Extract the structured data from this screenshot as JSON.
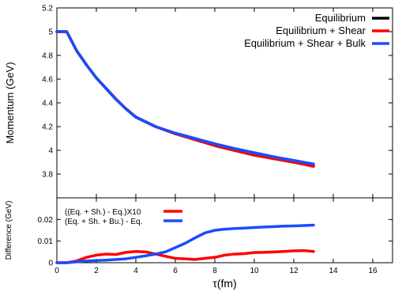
{
  "chart_data": [
    {
      "type": "line",
      "ylabel": "Momentum (GeV)",
      "xlim": [
        0,
        17
      ],
      "ylim": [
        3.6,
        5.2
      ],
      "xticks": [
        0,
        2,
        4,
        6,
        8,
        10,
        12,
        14,
        16
      ],
      "yticks": [
        3.8,
        4,
        4.2,
        4.4,
        4.6,
        4.8,
        5,
        5.2
      ],
      "legend_position": "top-right",
      "series": [
        {
          "name": "Equilibrium",
          "color": "#000000",
          "x": [
            0,
            0.5,
            1,
            1.5,
            2,
            2.5,
            3,
            3.5,
            4,
            5,
            6,
            7,
            8,
            9,
            10,
            11,
            12,
            13
          ],
          "y": [
            5.0,
            5.0,
            4.84,
            4.72,
            4.61,
            4.52,
            4.43,
            4.35,
            4.28,
            4.2,
            4.14,
            4.09,
            4.04,
            4.0,
            3.96,
            3.93,
            3.9,
            3.87
          ]
        },
        {
          "name": "Equilibrium + Shear",
          "color": "#ff0000",
          "x": [
            0,
            0.5,
            1,
            1.5,
            2,
            2.5,
            3,
            3.5,
            4,
            5,
            6,
            7,
            8,
            9,
            10,
            11,
            12,
            13
          ],
          "y": [
            5.0,
            5.0,
            4.84,
            4.72,
            4.61,
            4.52,
            4.43,
            4.35,
            4.28,
            4.2,
            4.14,
            4.09,
            4.04,
            4.0,
            3.96,
            3.93,
            3.9,
            3.865
          ]
        },
        {
          "name": "Equilibrium + Shear + Bulk",
          "color": "#1a4cff",
          "x": [
            0,
            0.5,
            1,
            1.5,
            2,
            2.5,
            3,
            3.5,
            4,
            5,
            6,
            7,
            8,
            9,
            10,
            11,
            12,
            13
          ],
          "y": [
            5.0,
            5.0,
            4.84,
            4.72,
            4.61,
            4.52,
            4.43,
            4.35,
            4.28,
            4.2,
            4.145,
            4.1,
            4.055,
            4.015,
            3.98,
            3.945,
            3.915,
            3.885
          ]
        }
      ]
    },
    {
      "type": "line",
      "xlabel": "τ(fm)",
      "ylabel": "Difference (GeV)",
      "xlim": [
        0,
        17
      ],
      "ylim": [
        0,
        0.03
      ],
      "xticks": [
        0,
        2,
        4,
        6,
        8,
        10,
        12,
        14,
        16
      ],
      "yticks": [
        0,
        0.01,
        0.02
      ],
      "legend_position": "top-left",
      "series": [
        {
          "name": "((Eq. + Sh.) - Eq.)X10",
          "color": "#ff0000",
          "x": [
            0,
            0.5,
            1,
            1.5,
            2,
            2.5,
            3,
            3.5,
            4,
            4.5,
            5,
            5.5,
            6,
            6.5,
            7,
            7.5,
            8,
            8.5,
            9,
            9.5,
            10,
            10.5,
            11,
            11.5,
            12,
            12.5,
            13
          ],
          "y": [
            0,
            0,
            0.0008,
            0.0025,
            0.0035,
            0.004,
            0.0038,
            0.0048,
            0.0052,
            0.005,
            0.004,
            0.003,
            0.002,
            0.0018,
            0.0015,
            0.002,
            0.0025,
            0.0035,
            0.004,
            0.0042,
            0.0047,
            0.0048,
            0.005,
            0.0052,
            0.0055,
            0.0056,
            0.0052
          ]
        },
        {
          "name": "(Eq. + Sh. + Bu.) - Eq.",
          "color": "#1a4cff",
          "x": [
            0,
            0.5,
            1,
            1.5,
            2,
            2.5,
            3,
            3.5,
            4,
            4.5,
            5,
            5.5,
            6,
            6.5,
            7,
            7.5,
            8,
            8.5,
            9,
            9.5,
            10,
            10.5,
            11,
            11.5,
            12,
            12.5,
            13
          ],
          "y": [
            0,
            0,
            0.0004,
            0.0008,
            0.001,
            0.0012,
            0.0015,
            0.0018,
            0.0025,
            0.0032,
            0.004,
            0.005,
            0.007,
            0.009,
            0.0115,
            0.0138,
            0.015,
            0.0155,
            0.0158,
            0.016,
            0.0163,
            0.0165,
            0.0167,
            0.0169,
            0.017,
            0.0172,
            0.0174
          ]
        }
      ]
    }
  ]
}
